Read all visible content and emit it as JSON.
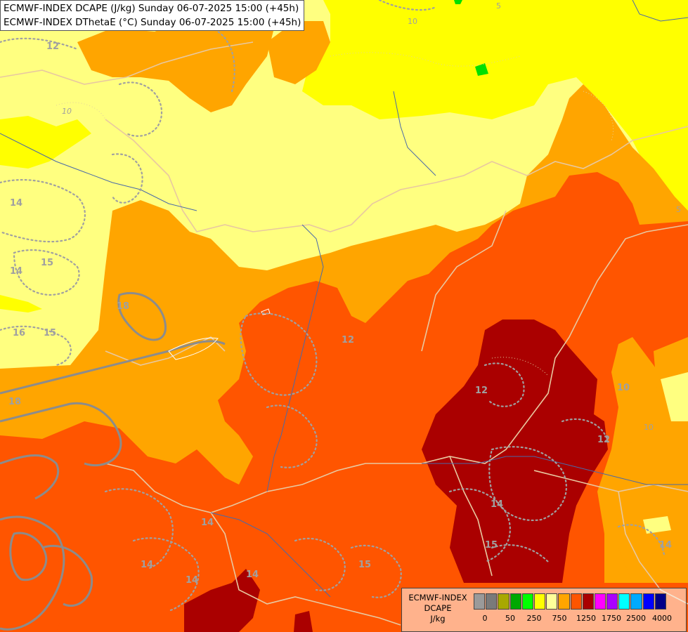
{
  "titles": [
    "ECMWF-INDEX DCAPE (J/kg) Sunday 06-07-2025 15:00 (+45h)",
    "ECMWF-INDEX DThetaE (°C) Sunday 06-07-2025 15:00 (+45h)"
  ],
  "legend": {
    "model": "ECMWF-INDEX",
    "variable": "DCAPE",
    "unit": "J/kg",
    "colors": [
      "#9a9a9a",
      "#7a7a7a",
      "#a8a800",
      "#00a800",
      "#00ff00",
      "#ffff00",
      "#ffff99",
      "#ffa500",
      "#ff5500",
      "#aa0000",
      "#ff00ff",
      "#aa00ff",
      "#00ffff",
      "#00aaff",
      "#0000ff",
      "#000088"
    ],
    "tick_labels": [
      "0",
      "50",
      "250",
      "750",
      "1250",
      "1750",
      "2500",
      "4000"
    ]
  },
  "contour_labels": [
    "12",
    "10",
    "14",
    "15",
    "14",
    "16",
    "15",
    "18",
    "18",
    "12",
    "12",
    "10",
    "10",
    "12",
    "14",
    "14",
    "15",
    "14",
    "14",
    "15",
    "14",
    "14",
    "5",
    "5",
    "10"
  ],
  "colors": {
    "light_yellow": "#ffff80",
    "yellow": "#ffff00",
    "green": "#00e000",
    "orange": "#ffa500",
    "dark_orange": "#ff5500",
    "dark_red": "#aa0000"
  }
}
